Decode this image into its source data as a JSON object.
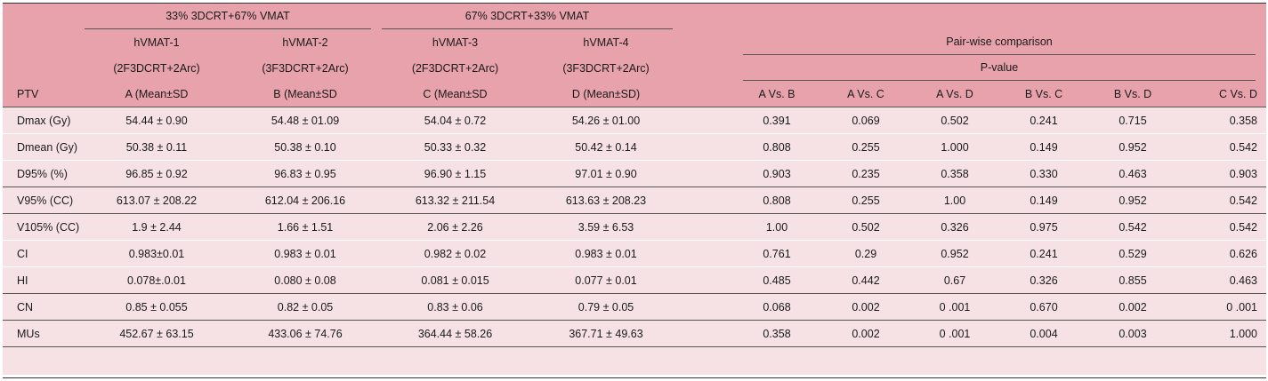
{
  "table": {
    "group_headers": [
      "33% 3DCRT+67% VMAT",
      "67% 3DCRT+33% VMAT"
    ],
    "plan_names": [
      "hVMAT-1",
      "hVMAT-2",
      "hVMAT-3",
      "hVMAT-4"
    ],
    "plan_configs": [
      "(2F3DCRT+2Arc)",
      "(3F3DCRT+2Arc)",
      "(2F3DCRT+2Arc)",
      "(3F3DCRT+2Arc)"
    ],
    "pairwise_header": "Pair-wise comparison",
    "pvalue_header": "P-value",
    "ptv_header": "PTV",
    "plan_cols": [
      "A (Mean±SD",
      "B (Mean±SD",
      "C (Mean±SD",
      "D (Mean±SD)"
    ],
    "pair_cols": [
      "A Vs. B",
      "A Vs. C",
      "A Vs. D",
      "B Vs. C",
      "B Vs. D",
      "C Vs. D"
    ],
    "rows": [
      {
        "label": "Dmax (Gy)",
        "values": [
          "54.44 ± 0.90",
          "54.48 ± 01.09",
          "54.04 ± 0.72",
          "54.26 ± 01.00",
          "0.391",
          "0.069",
          "0.502",
          "0.241",
          "0.715",
          "0.358"
        ]
      },
      {
        "label": "Dmean (Gy)",
        "values": [
          "50.38 ± 0.11",
          "50.38 ± 0.10",
          "50.33 ± 0.32",
          "50.42 ± 0.14",
          "0.808",
          "0.255",
          "1.000",
          "0.149",
          "0.952",
          "0.542"
        ]
      },
      {
        "label": "D95% (%)",
        "values": [
          "96.85 ± 0.92",
          "96.83 ± 0.95",
          "96.90 ± 1.15",
          "97.01 ± 0.90",
          "0.903",
          "0.235",
          "0.358",
          "0.330",
          "0.463",
          "0.903"
        ]
      },
      {
        "label": "V95% (CC)",
        "values": [
          "613.07 ± 208.22",
          "612.04 ± 206.16",
          "613.32 ± 211.54",
          "613.63 ± 208.23",
          "0.808",
          "0.255",
          "1.00",
          "0.149",
          "0.952",
          "0.542"
        ]
      },
      {
        "label": "V105% (CC)",
        "values": [
          "1.9 ± 2.44",
          "1.66 ± 1.51",
          "2.06 ± 2.26",
          "3.59 ± 6.53",
          "1.00",
          "0.502",
          "0.326",
          "0.975",
          "0.542",
          "0.542"
        ]
      },
      {
        "label": "CI",
        "values": [
          "0.983±0.01",
          "0.983 ± 0.01",
          "0.982 ± 0.02",
          "0.983 ± 0.01",
          "0.761",
          "0.29",
          "0.952",
          "0.241",
          "0.529",
          "0.626"
        ]
      },
      {
        "label": "HI",
        "values": [
          "0.078±.0.01",
          "0.080 ± 0.08",
          "0.081 ± 0.015",
          "0.077 ± 0.01",
          "0.485",
          "0.442",
          "0.67",
          "0.326",
          "0.855",
          "0.463"
        ]
      },
      {
        "label": "CN",
        "values": [
          "0.85 ± 0.055",
          "0.82 ± 0.05",
          "0.83 ± 0.06",
          "0.79 ± 0.05",
          "0.068",
          "0.002",
          "0 .001",
          "0.670",
          "0.002",
          "0 .001"
        ]
      },
      {
        "label": "MUs",
        "values": [
          "452.67 ± 63.15",
          "433.06 ± 74.76",
          "364.44 ± 58.26",
          "367.71 ± 49.63",
          "0.358",
          "0.002",
          "0 .001",
          "0.004",
          "0.003",
          "1.000"
        ]
      }
    ]
  }
}
